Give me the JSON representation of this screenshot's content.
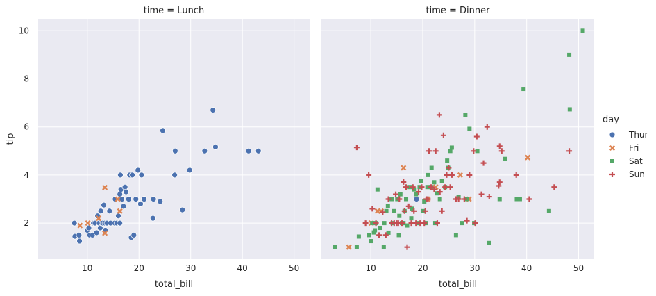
{
  "chart_data": [
    {
      "type": "scatter",
      "title": "time = Lunch",
      "xlabel": "total_bill",
      "ylabel": "tip",
      "xlim": [
        0.5,
        53
      ],
      "ylim": [
        0.5,
        10.5
      ],
      "xticks": [
        10,
        20,
        30,
        40,
        50
      ],
      "yticks": [
        2,
        4,
        6,
        8,
        10
      ],
      "grid": true,
      "series": [
        {
          "name": "Thur",
          "marker": "circle",
          "color": "#4c72b0",
          "points": [
            [
              7.5,
              2.0
            ],
            [
              7.6,
              1.45
            ],
            [
              8.4,
              1.5
            ],
            [
              8.5,
              1.25
            ],
            [
              10.0,
              1.7
            ],
            [
              10.3,
              1.8
            ],
            [
              10.5,
              1.5
            ],
            [
              11.0,
              1.5
            ],
            [
              11.2,
              2.0
            ],
            [
              11.5,
              2.0
            ],
            [
              11.8,
              1.6
            ],
            [
              12.0,
              2.3
            ],
            [
              12.3,
              2.0
            ],
            [
              12.5,
              1.8
            ],
            [
              12.6,
              2.5
            ],
            [
              12.8,
              2.0
            ],
            [
              13.0,
              2.0
            ],
            [
              13.2,
              2.75
            ],
            [
              13.4,
              2.0
            ],
            [
              13.5,
              1.7
            ],
            [
              13.8,
              2.0
            ],
            [
              14.3,
              2.5
            ],
            [
              14.5,
              2.0
            ],
            [
              15.3,
              2.0
            ],
            [
              15.4,
              3.0
            ],
            [
              15.7,
              2.0
            ],
            [
              16.0,
              2.3
            ],
            [
              16.3,
              2.0
            ],
            [
              16.3,
              3.2
            ],
            [
              16.4,
              4.0
            ],
            [
              16.5,
              3.4
            ],
            [
              16.7,
              3.0
            ],
            [
              17.0,
              2.7
            ],
            [
              17.3,
              3.5
            ],
            [
              17.5,
              3.3
            ],
            [
              18.0,
              3.0
            ],
            [
              18.2,
              4.0
            ],
            [
              18.5,
              1.4
            ],
            [
              18.7,
              4.0
            ],
            [
              19.0,
              1.5
            ],
            [
              19.4,
              3.0
            ],
            [
              19.8,
              4.2
            ],
            [
              20.3,
              2.8
            ],
            [
              20.5,
              4.0
            ],
            [
              21.0,
              3.0
            ],
            [
              22.7,
              2.2
            ],
            [
              22.8,
              3.0
            ],
            [
              24.1,
              2.9
            ],
            [
              24.6,
              5.85
            ],
            [
              26.9,
              4.0
            ],
            [
              27.0,
              5.0
            ],
            [
              28.4,
              2.55
            ],
            [
              29.8,
              4.2
            ],
            [
              32.7,
              5.0
            ],
            [
              34.3,
              6.7
            ],
            [
              34.8,
              5.17
            ],
            [
              41.2,
              5.0
            ],
            [
              43.1,
              5.0
            ]
          ]
        },
        {
          "name": "Fri",
          "marker": "x",
          "color": "#dd8452",
          "points": [
            [
              8.6,
              1.9
            ],
            [
              10.1,
              2.0
            ],
            [
              12.2,
              2.2
            ],
            [
              13.4,
              3.48
            ],
            [
              13.4,
              1.58
            ],
            [
              15.9,
              3.0
            ],
            [
              16.3,
              2.5
            ]
          ]
        }
      ]
    },
    {
      "type": "scatter",
      "title": "time = Dinner",
      "xlabel": "total_bill",
      "ylabel": "",
      "xlim": [
        0.5,
        53
      ],
      "ylim": [
        0.5,
        10.5
      ],
      "xticks": [
        10,
        20,
        30,
        40,
        50
      ],
      "yticks": [
        2,
        4,
        6,
        8,
        10
      ],
      "grid": true,
      "series": [
        {
          "name": "Thur",
          "marker": "circle",
          "color": "#4c72b0",
          "points": [
            [
              18.8,
              3.0
            ]
          ]
        },
        {
          "name": "Fri",
          "marker": "x",
          "color": "#dd8452",
          "points": [
            [
              5.8,
              1.0
            ],
            [
              10.1,
              2.0
            ],
            [
              11.3,
              2.5
            ],
            [
              12.0,
              2.5
            ],
            [
              16.3,
              4.3
            ],
            [
              21.0,
              3.0
            ],
            [
              22.5,
              3.5
            ],
            [
              27.2,
              4.0
            ],
            [
              28.9,
              3.0
            ],
            [
              40.2,
              4.73
            ]
          ]
        },
        {
          "name": "Sat",
          "marker": "square",
          "color": "#55a868",
          "points": [
            [
              3.1,
              1.0
            ],
            [
              7.3,
              1.0
            ],
            [
              7.7,
              1.44
            ],
            [
              9.6,
              1.5
            ],
            [
              10.1,
              1.25
            ],
            [
              10.3,
              2.0
            ],
            [
              10.6,
              1.61
            ],
            [
              10.8,
              1.7
            ],
            [
              11.0,
              2.0
            ],
            [
              11.3,
              3.4
            ],
            [
              11.8,
              1.8
            ],
            [
              12.5,
              1.0
            ],
            [
              12.6,
              2.0
            ],
            [
              13.0,
              2.5
            ],
            [
              13.3,
              2.7
            ],
            [
              13.4,
              1.6
            ],
            [
              14.0,
              3.0
            ],
            [
              14.2,
              2.0
            ],
            [
              14.5,
              2.5
            ],
            [
              15.1,
              3.0
            ],
            [
              15.4,
              1.5
            ],
            [
              15.5,
              2.3
            ],
            [
              15.7,
              3.2
            ],
            [
              16.0,
              2.0
            ],
            [
              16.3,
              2.0
            ],
            [
              16.5,
              2.5
            ],
            [
              16.8,
              3.0
            ],
            [
              17.0,
              1.9
            ],
            [
              17.5,
              3.5
            ],
            [
              17.8,
              2.2
            ],
            [
              18.0,
              2.6
            ],
            [
              18.3,
              3.4
            ],
            [
              18.7,
              3.2
            ],
            [
              19.1,
              2.0
            ],
            [
              19.4,
              3.5
            ],
            [
              19.7,
              3.75
            ],
            [
              20.0,
              2.5
            ],
            [
              20.3,
              2.9
            ],
            [
              20.6,
              2.0
            ],
            [
              20.9,
              3.5
            ],
            [
              21.0,
              4.0
            ],
            [
              21.6,
              3.5
            ],
            [
              21.7,
              4.3
            ],
            [
              22.2,
              3.7
            ],
            [
              22.4,
              2.0
            ],
            [
              22.8,
              3.24
            ],
            [
              23.3,
              3.0
            ],
            [
              23.7,
              3.75
            ],
            [
              24.3,
              3.5
            ],
            [
              24.7,
              4.6
            ],
            [
              24.9,
              4.3
            ],
            [
              25.3,
              5.0
            ],
            [
              25.6,
              5.14
            ],
            [
              26.4,
              1.5
            ],
            [
              26.9,
              3.1
            ],
            [
              27.5,
              2.0
            ],
            [
              28.2,
              6.5
            ],
            [
              28.5,
              3.0
            ],
            [
              29.0,
              5.92
            ],
            [
              29.9,
              2.0
            ],
            [
              30.5,
              5.0
            ],
            [
              32.8,
              1.17
            ],
            [
              34.8,
              3.0
            ],
            [
              35.8,
              4.67
            ],
            [
              38.1,
              3.0
            ],
            [
              38.7,
              3.0
            ],
            [
              39.4,
              7.58
            ],
            [
              44.3,
              2.5
            ],
            [
              48.2,
              9.0
            ],
            [
              48.3,
              6.73
            ],
            [
              50.8,
              10.0
            ]
          ]
        },
        {
          "name": "Sun",
          "marker": "plus",
          "color": "#c44e52",
          "points": [
            [
              7.3,
              5.15
            ],
            [
              9.0,
              2.0
            ],
            [
              9.6,
              4.0
            ],
            [
              10.3,
              2.6
            ],
            [
              11.0,
              2.0
            ],
            [
              11.6,
              1.5
            ],
            [
              12.3,
              2.45
            ],
            [
              12.9,
              1.5
            ],
            [
              13.4,
              3.0
            ],
            [
              14.0,
              2.0
            ],
            [
              14.5,
              2.0
            ],
            [
              14.8,
              3.2
            ],
            [
              15.0,
              2.0
            ],
            [
              15.3,
              2.0
            ],
            [
              15.5,
              3.0
            ],
            [
              16.0,
              2.0
            ],
            [
              16.3,
              3.71
            ],
            [
              16.5,
              2.5
            ],
            [
              16.8,
              3.5
            ],
            [
              17.0,
              1.0
            ],
            [
              17.3,
              2.7
            ],
            [
              17.8,
              2.0
            ],
            [
              18.1,
              3.5
            ],
            [
              18.3,
              2.5
            ],
            [
              18.7,
              2.0
            ],
            [
              19.2,
              3.3
            ],
            [
              19.5,
              2.0
            ],
            [
              19.8,
              3.5
            ],
            [
              20.3,
              2.0
            ],
            [
              20.5,
              2.5
            ],
            [
              20.7,
              3.0
            ],
            [
              21.0,
              3.0
            ],
            [
              21.2,
              5.0
            ],
            [
              21.6,
              3.5
            ],
            [
              22.2,
              3.4
            ],
            [
              22.5,
              5.0
            ],
            [
              22.8,
              2.0
            ],
            [
              23.2,
              6.5
            ],
            [
              23.3,
              3.3
            ],
            [
              23.7,
              2.5
            ],
            [
              24.0,
              5.65
            ],
            [
              24.3,
              3.5
            ],
            [
              24.6,
              4.0
            ],
            [
              25.0,
              4.3
            ],
            [
              25.3,
              3.5
            ],
            [
              25.6,
              4.0
            ],
            [
              26.4,
              3.0
            ],
            [
              26.9,
              3.0
            ],
            [
              28.0,
              3.0
            ],
            [
              28.5,
              2.1
            ],
            [
              29.0,
              4.0
            ],
            [
              29.8,
              5.0
            ],
            [
              30.1,
              2.0
            ],
            [
              30.4,
              5.6
            ],
            [
              31.3,
              3.2
            ],
            [
              31.7,
              4.5
            ],
            [
              32.4,
              6.0
            ],
            [
              32.8,
              3.1
            ],
            [
              34.6,
              3.55
            ],
            [
              34.8,
              3.7
            ],
            [
              34.8,
              5.2
            ],
            [
              35.2,
              5.0
            ],
            [
              38.0,
              4.0
            ],
            [
              40.5,
              3.0
            ],
            [
              45.3,
              3.5
            ],
            [
              48.2,
              5.0
            ]
          ]
        }
      ]
    }
  ],
  "legend": {
    "title": "day",
    "placement": "right",
    "entries": [
      {
        "name": "Thur",
        "marker": "circle",
        "color": "#4c72b0"
      },
      {
        "name": "Fri",
        "marker": "x",
        "color": "#dd8452"
      },
      {
        "name": "Sat",
        "marker": "square",
        "color": "#55a868"
      },
      {
        "name": "Sun",
        "marker": "plus",
        "color": "#c44e52"
      }
    ]
  }
}
